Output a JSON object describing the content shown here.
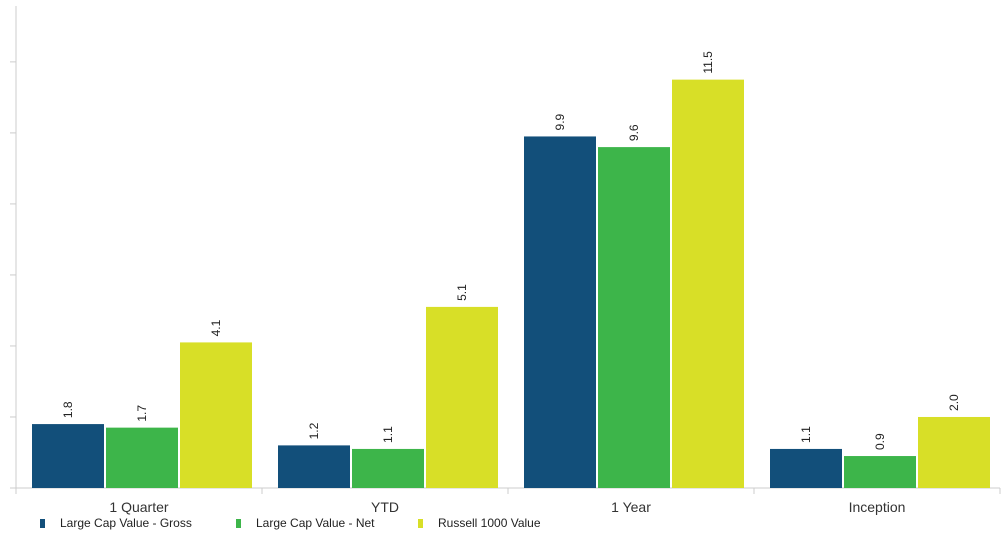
{
  "chart_data": {
    "type": "bar",
    "title": "",
    "xlabel": "",
    "ylabel": "",
    "categories": [
      "1 Quarter",
      "YTD",
      "1 Year",
      "Inception"
    ],
    "series": [
      {
        "name": "Large Cap Value - Gross",
        "color": "#124f7a",
        "values": [
          1.8,
          1.2,
          9.9,
          1.1
        ],
        "labels": [
          "1.8",
          "1.2",
          "9.9",
          "1.1"
        ]
      },
      {
        "name": "Large Cap Value - Net",
        "color": "#3db54a",
        "values": [
          1.7,
          1.1,
          9.6,
          0.9
        ],
        "labels": [
          "1.7",
          "1.1",
          "9.6",
          "0.9"
        ]
      },
      {
        "name": "Russell 1000 Value",
        "color": "#d8df27",
        "values": [
          4.1,
          5.1,
          11.5,
          2.0
        ],
        "labels": [
          "4.1",
          "5.1",
          "11.5",
          "2.0"
        ]
      }
    ],
    "ylim": [
      0,
      14
    ],
    "ytick_values": [
      0,
      2,
      4,
      6,
      8,
      10,
      12
    ],
    "grid": false,
    "legend_position": "bottom-left",
    "value_labels": "rotated-vertical"
  }
}
